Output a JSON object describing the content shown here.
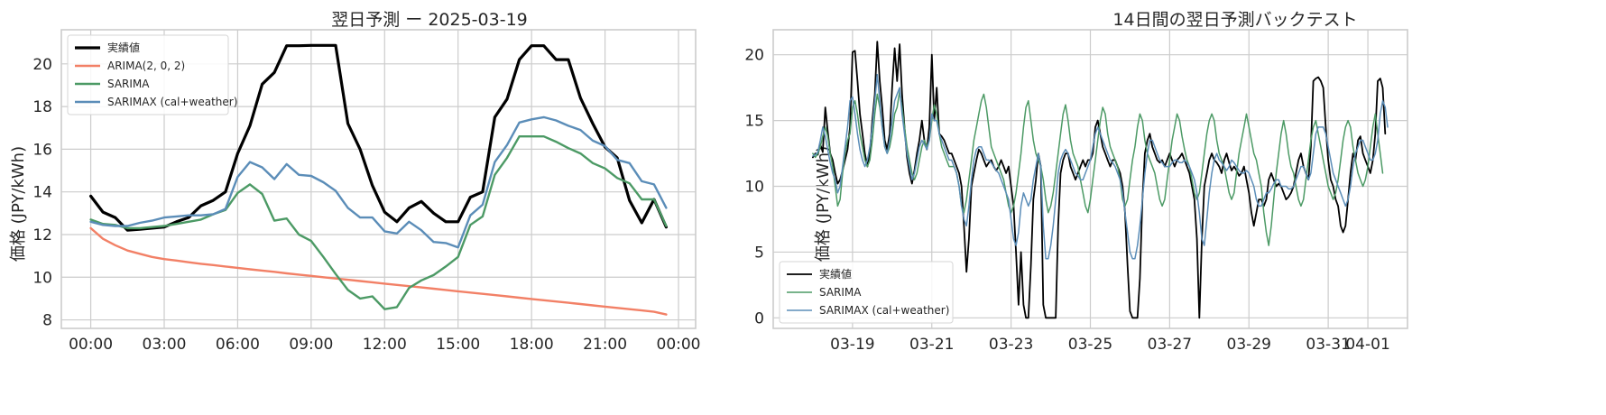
{
  "chart_data": [
    {
      "type": "line",
      "title": "翌日予測 ー 2025-03-19",
      "xlabel": "",
      "ylabel": "価格 (JPY/kWh)",
      "x_ticks": [
        "00:00",
        "03:00",
        "06:00",
        "09:00",
        "12:00",
        "15:00",
        "18:00",
        "21:00",
        "00:00"
      ],
      "x_tick_hours": [
        0,
        3,
        6,
        9,
        12,
        15,
        18,
        21,
        24
      ],
      "xlim_hours": [
        -1.2,
        24.7
      ],
      "y_ticks": [
        8,
        10,
        12,
        14,
        16,
        18,
        20
      ],
      "ylim": [
        7.6,
        21.6
      ],
      "grid": true,
      "legend": "top-left",
      "x_hours": [
        0,
        0.5,
        1,
        1.5,
        2,
        2.5,
        3,
        3.5,
        4,
        4.5,
        5,
        5.5,
        6,
        6.5,
        7,
        7.5,
        8,
        8.5,
        9,
        9.5,
        10,
        10.5,
        11,
        11.5,
        12,
        12.5,
        13,
        13.5,
        14,
        14.5,
        15,
        15.5,
        16,
        16.5,
        17,
        17.5,
        18,
        18.5,
        19,
        19.5,
        20,
        20.5,
        21,
        21.5,
        22,
        22.5,
        23,
        23.5
      ],
      "series": [
        {
          "name": "実績値",
          "color": "#000000",
          "width": 3.2,
          "values": [
            13.8,
            13.05,
            12.8,
            12.2,
            12.25,
            12.3,
            12.35,
            12.6,
            12.8,
            13.35,
            13.6,
            14.0,
            15.8,
            17.1,
            19.05,
            19.6,
            20.85,
            20.85,
            20.87,
            20.87,
            20.87,
            17.2,
            16.0,
            14.3,
            13.05,
            12.6,
            13.25,
            13.55,
            13.0,
            12.6,
            12.6,
            13.75,
            14.0,
            17.5,
            18.35,
            20.2,
            20.85,
            20.85,
            20.2,
            20.2,
            18.4,
            17.2,
            16.1,
            15.6,
            13.6,
            12.55,
            13.65,
            12.35
          ]
        },
        {
          "name": "ARIMA(2, 0, 2)",
          "color": "#f28066",
          "width": 2.4,
          "values": [
            12.3,
            11.8,
            11.5,
            11.25,
            11.1,
            10.95,
            10.85,
            10.78,
            10.7,
            10.63,
            10.57,
            10.5,
            10.44,
            10.37,
            10.31,
            10.25,
            10.18,
            10.12,
            10.06,
            10.0,
            9.94,
            9.88,
            9.82,
            9.76,
            9.7,
            9.64,
            9.58,
            9.52,
            9.46,
            9.4,
            9.34,
            9.28,
            9.22,
            9.16,
            9.1,
            9.04,
            8.98,
            8.92,
            8.86,
            8.8,
            8.74,
            8.68,
            8.62,
            8.56,
            8.5,
            8.44,
            8.38,
            8.25
          ]
        },
        {
          "name": "SARIMA",
          "color": "#4c9a65",
          "width": 2.4,
          "values": [
            12.7,
            12.5,
            12.45,
            12.3,
            12.3,
            12.35,
            12.4,
            12.5,
            12.6,
            12.7,
            12.95,
            13.15,
            13.95,
            14.35,
            13.9,
            12.65,
            12.75,
            12.0,
            11.7,
            10.95,
            10.15,
            9.4,
            9.0,
            9.1,
            8.5,
            8.6,
            9.5,
            9.85,
            10.1,
            10.5,
            10.95,
            12.45,
            12.85,
            14.8,
            15.6,
            16.6,
            16.6,
            16.6,
            16.35,
            16.05,
            15.8,
            15.35,
            15.1,
            14.65,
            14.4,
            13.65,
            13.65,
            12.4
          ]
        },
        {
          "name": "SARIMAX (cal+weather)",
          "color": "#5b8db8",
          "width": 2.4,
          "values": [
            12.6,
            12.45,
            12.4,
            12.4,
            12.55,
            12.65,
            12.8,
            12.85,
            12.9,
            12.9,
            12.95,
            13.2,
            14.7,
            15.4,
            15.15,
            14.6,
            15.3,
            14.8,
            14.75,
            14.45,
            14.05,
            13.25,
            12.8,
            12.8,
            12.15,
            12.05,
            12.6,
            12.2,
            11.65,
            11.6,
            11.4,
            12.9,
            13.4,
            15.4,
            16.2,
            17.25,
            17.4,
            17.5,
            17.35,
            17.1,
            16.9,
            16.4,
            16.15,
            15.5,
            15.35,
            14.5,
            14.35,
            13.25
          ]
        }
      ]
    },
    {
      "type": "line",
      "title": "14日間の翌日予測バックテスト",
      "xlabel": "",
      "ylabel": "価格 (JPY/kWh)",
      "x_ticks": [
        "03-19",
        "03-21",
        "03-23",
        "03-25",
        "03-27",
        "03-29",
        "03-31",
        "04-01"
      ],
      "x_tick_days": [
        1,
        3,
        5,
        7,
        9,
        11,
        13,
        14
      ],
      "xlim_days": [
        -1.0,
        15.0
      ],
      "y_ticks": [
        0,
        5,
        10,
        15,
        20
      ],
      "ylim": [
        -0.8,
        21.9
      ],
      "grid": true,
      "legend": "bottom-left",
      "x_start_day": 0,
      "x_step_days": 0.0625,
      "series": [
        {
          "name": "実績値",
          "color": "#000000",
          "width": 1.8,
          "values": [
            12.2,
            12.5,
            12.4,
            13.2,
            12.6,
            16.0,
            14.2,
            12.5,
            12.0,
            11.0,
            10.2,
            10.5,
            11.2,
            12.0,
            12.8,
            14.5,
            20.2,
            20.3,
            18.0,
            15.5,
            14.0,
            12.5,
            11.5,
            12.5,
            15.0,
            17.0,
            21.0,
            18.0,
            16.0,
            13.5,
            12.8,
            14.0,
            17.5,
            20.5,
            18.0,
            20.8,
            17.0,
            14.5,
            12.2,
            11.0,
            10.2,
            11.2,
            12.5,
            13.5,
            15.0,
            13.5,
            12.8,
            14.5,
            20.0,
            15.0,
            17.5,
            14.0,
            13.8,
            13.5,
            13.0,
            12.5,
            12.5,
            12.0,
            11.5,
            11.0,
            10.0,
            7.0,
            3.5,
            6.0,
            10.0,
            11.0,
            12.0,
            12.8,
            12.5,
            12.0,
            11.5,
            11.8,
            12.0,
            11.5,
            11.2,
            11.5,
            12.0,
            11.5,
            11.0,
            11.5,
            10.0,
            8.5,
            5.0,
            1.0,
            5.0,
            1.0,
            0.0,
            0.0,
            4.0,
            9.0,
            10.5,
            12.5,
            11.5,
            1.0,
            0.0,
            0.0,
            0.0,
            0.0,
            0.0,
            7.0,
            11.0,
            12.0,
            12.5,
            12.5,
            11.5,
            11.0,
            10.5,
            11.0,
            11.5,
            12.0,
            11.5,
            12.0,
            12.0,
            12.5,
            14.5,
            15.0,
            14.0,
            13.0,
            12.5,
            12.0,
            11.5,
            12.0,
            12.0,
            11.5,
            11.0,
            10.0,
            8.0,
            4.0,
            0.5,
            0.0,
            0.0,
            0.0,
            3.0,
            9.0,
            12.5,
            13.5,
            14.0,
            13.0,
            12.5,
            12.0,
            11.8,
            12.0,
            11.5,
            12.0,
            12.5,
            12.0,
            11.5,
            12.0,
            12.2,
            12.5,
            12.0,
            11.5,
            11.0,
            10.0,
            9.0,
            6.0,
            0.0,
            6.0,
            10.0,
            11.0,
            12.0,
            12.5,
            12.0,
            11.8,
            11.5,
            11.0,
            12.0,
            12.5,
            11.8,
            11.2,
            11.5,
            11.2,
            10.8,
            11.0,
            11.5,
            10.5,
            9.5,
            8.0,
            7.0,
            8.0,
            9.0,
            9.0,
            8.5,
            9.0,
            10.5,
            11.0,
            10.5,
            10.0,
            10.2,
            10.0,
            9.5,
            9.0,
            9.2,
            9.5,
            10.0,
            11.0,
            12.0,
            12.5,
            11.5,
            11.0,
            10.5,
            13.0,
            18.0,
            18.2,
            18.3,
            18.0,
            17.5,
            14.5,
            12.0,
            10.5,
            10.0,
            9.0,
            8.5,
            7.0,
            6.5,
            7.0,
            9.0,
            11.0,
            12.5,
            12.0,
            13.5,
            13.8,
            12.5,
            12.0,
            11.5,
            11.0,
            12.0,
            14.0,
            18.0,
            18.2,
            17.5,
            14.0
          ]
        },
        {
          "name": "SARIMA",
          "color": "#4c9a65",
          "width": 1.5,
          "values": [
            12.5,
            12.2,
            12.5,
            13.0,
            13.8,
            14.5,
            13.8,
            12.5,
            11.5,
            10.0,
            8.5,
            9.0,
            11.0,
            12.5,
            13.5,
            14.0,
            16.0,
            16.5,
            15.5,
            14.0,
            13.0,
            12.0,
            11.5,
            12.0,
            13.5,
            15.5,
            17.0,
            16.0,
            14.5,
            13.0,
            12.5,
            13.0,
            14.0,
            15.5,
            16.0,
            17.2,
            16.0,
            14.5,
            13.0,
            12.0,
            11.0,
            10.5,
            11.0,
            12.0,
            13.0,
            13.5,
            13.0,
            13.5,
            15.0,
            16.2,
            15.5,
            14.0,
            13.0,
            12.5,
            12.0,
            11.5,
            11.5,
            11.5,
            11.0,
            10.0,
            8.5,
            8.0,
            9.0,
            10.5,
            12.0,
            13.5,
            14.5,
            15.5,
            16.5,
            17.0,
            16.0,
            14.5,
            13.0,
            12.5,
            12.0,
            11.5,
            11.0,
            10.5,
            9.5,
            8.5,
            8.0,
            8.5,
            9.5,
            11.0,
            12.5,
            14.5,
            16.0,
            16.5,
            15.0,
            13.5,
            12.5,
            12.0,
            11.5,
            10.5,
            9.0,
            8.0,
            8.5,
            9.5,
            11.0,
            12.5,
            14.0,
            15.5,
            16.2,
            15.0,
            13.5,
            12.5,
            12.0,
            11.5,
            10.5,
            9.5,
            8.5,
            8.0,
            9.0,
            10.5,
            12.0,
            13.5,
            15.0,
            16.0,
            15.5,
            14.0,
            13.0,
            12.5,
            12.0,
            11.5,
            10.5,
            9.0,
            8.5,
            9.0,
            10.5,
            12.0,
            13.0,
            14.5,
            15.5,
            15.0,
            13.5,
            12.5,
            12.0,
            11.5,
            11.0,
            10.0,
            9.0,
            8.5,
            9.0,
            10.5,
            12.0,
            13.5,
            14.5,
            15.5,
            15.0,
            13.8,
            12.8,
            12.0,
            11.5,
            10.5,
            9.5,
            9.0,
            9.5,
            11.0,
            12.5,
            14.0,
            15.0,
            15.5,
            15.0,
            13.5,
            12.5,
            12.0,
            11.5,
            10.5,
            9.5,
            9.0,
            9.5,
            11.0,
            12.5,
            13.5,
            14.5,
            15.5,
            14.5,
            13.5,
            12.5,
            12.0,
            11.0,
            10.0,
            8.0,
            6.5,
            5.5,
            7.0,
            9.0,
            11.0,
            12.5,
            14.0,
            15.0,
            14.0,
            12.5,
            11.5,
            11.0,
            10.0,
            9.0,
            8.5,
            9.0,
            10.5,
            12.0,
            13.5,
            14.5,
            15.0,
            14.0,
            13.0,
            12.0,
            11.0,
            10.0,
            9.5,
            9.0,
            9.5,
            10.5,
            12.0,
            13.5,
            14.5,
            15.0,
            14.5,
            13.0,
            12.0,
            11.0,
            10.5,
            10.0,
            10.5,
            11.5,
            13.0,
            14.5,
            15.5,
            14.0,
            12.5,
            11.0
          ]
        },
        {
          "name": "SARIMAX (cal+weather)",
          "color": "#5b8db8",
          "width": 1.5,
          "values": [
            12.3,
            12.4,
            12.6,
            13.5,
            14.5,
            13.8,
            12.8,
            11.8,
            11.0,
            10.5,
            9.5,
            10.0,
            11.5,
            13.0,
            14.5,
            16.5,
            16.8,
            15.5,
            14.0,
            12.8,
            12.0,
            11.5,
            12.0,
            13.0,
            14.5,
            16.5,
            18.5,
            16.5,
            14.5,
            13.0,
            12.5,
            13.5,
            15.0,
            16.5,
            17.0,
            17.5,
            15.5,
            14.0,
            12.5,
            11.5,
            10.5,
            11.0,
            12.0,
            13.0,
            13.5,
            13.2,
            12.8,
            13.5,
            15.5,
            15.0,
            15.0,
            14.0,
            13.5,
            13.0,
            12.5,
            12.0,
            12.0,
            11.5,
            11.0,
            10.0,
            8.5,
            7.5,
            7.0,
            8.5,
            10.5,
            12.0,
            12.8,
            13.0,
            13.0,
            12.5,
            12.0,
            12.0,
            11.8,
            11.5,
            11.2,
            11.0,
            10.5,
            10.0,
            9.5,
            9.0,
            7.5,
            6.0,
            5.5,
            6.5,
            8.5,
            9.5,
            9.0,
            8.5,
            9.0,
            10.5,
            11.5,
            12.5,
            11.5,
            7.0,
            4.5,
            4.5,
            5.5,
            7.0,
            9.0,
            11.0,
            12.0,
            12.5,
            12.8,
            12.5,
            12.0,
            11.5,
            11.0,
            10.8,
            10.5,
            10.5,
            11.0,
            11.5,
            12.0,
            13.0,
            14.0,
            14.5,
            14.0,
            13.5,
            13.0,
            12.5,
            12.0,
            11.8,
            11.5,
            11.0,
            10.5,
            9.5,
            8.0,
            6.5,
            5.0,
            4.5,
            4.5,
            5.5,
            7.0,
            9.0,
            11.0,
            12.5,
            13.5,
            13.5,
            13.0,
            12.5,
            12.0,
            11.8,
            11.5,
            11.5,
            11.5,
            11.8,
            12.0,
            12.0,
            11.8,
            11.8,
            12.0,
            11.8,
            11.5,
            11.0,
            10.5,
            9.5,
            8.0,
            6.0,
            5.5,
            7.5,
            9.5,
            11.0,
            12.0,
            12.5,
            12.0,
            11.8,
            11.5,
            11.2,
            11.5,
            12.0,
            11.8,
            11.5,
            11.2,
            11.0,
            11.0,
            11.2,
            11.0,
            10.5,
            10.0,
            9.0,
            8.5,
            8.5,
            9.0,
            9.5,
            9.5,
            9.8,
            10.2,
            10.5,
            10.5,
            10.0,
            10.0,
            10.0,
            9.8,
            9.8,
            10.0,
            10.5,
            11.0,
            11.5,
            11.5,
            11.0,
            10.5,
            11.0,
            12.5,
            14.0,
            14.5,
            14.5,
            14.5,
            14.0,
            13.0,
            12.0,
            11.0,
            10.5,
            10.0,
            9.5,
            9.0,
            8.5,
            9.0,
            10.0,
            11.5,
            12.5,
            13.0,
            13.5,
            13.5,
            13.0,
            12.5,
            12.0,
            12.0,
            12.5,
            13.5,
            15.5,
            16.5,
            16.0,
            14.5
          ]
        }
      ]
    }
  ]
}
